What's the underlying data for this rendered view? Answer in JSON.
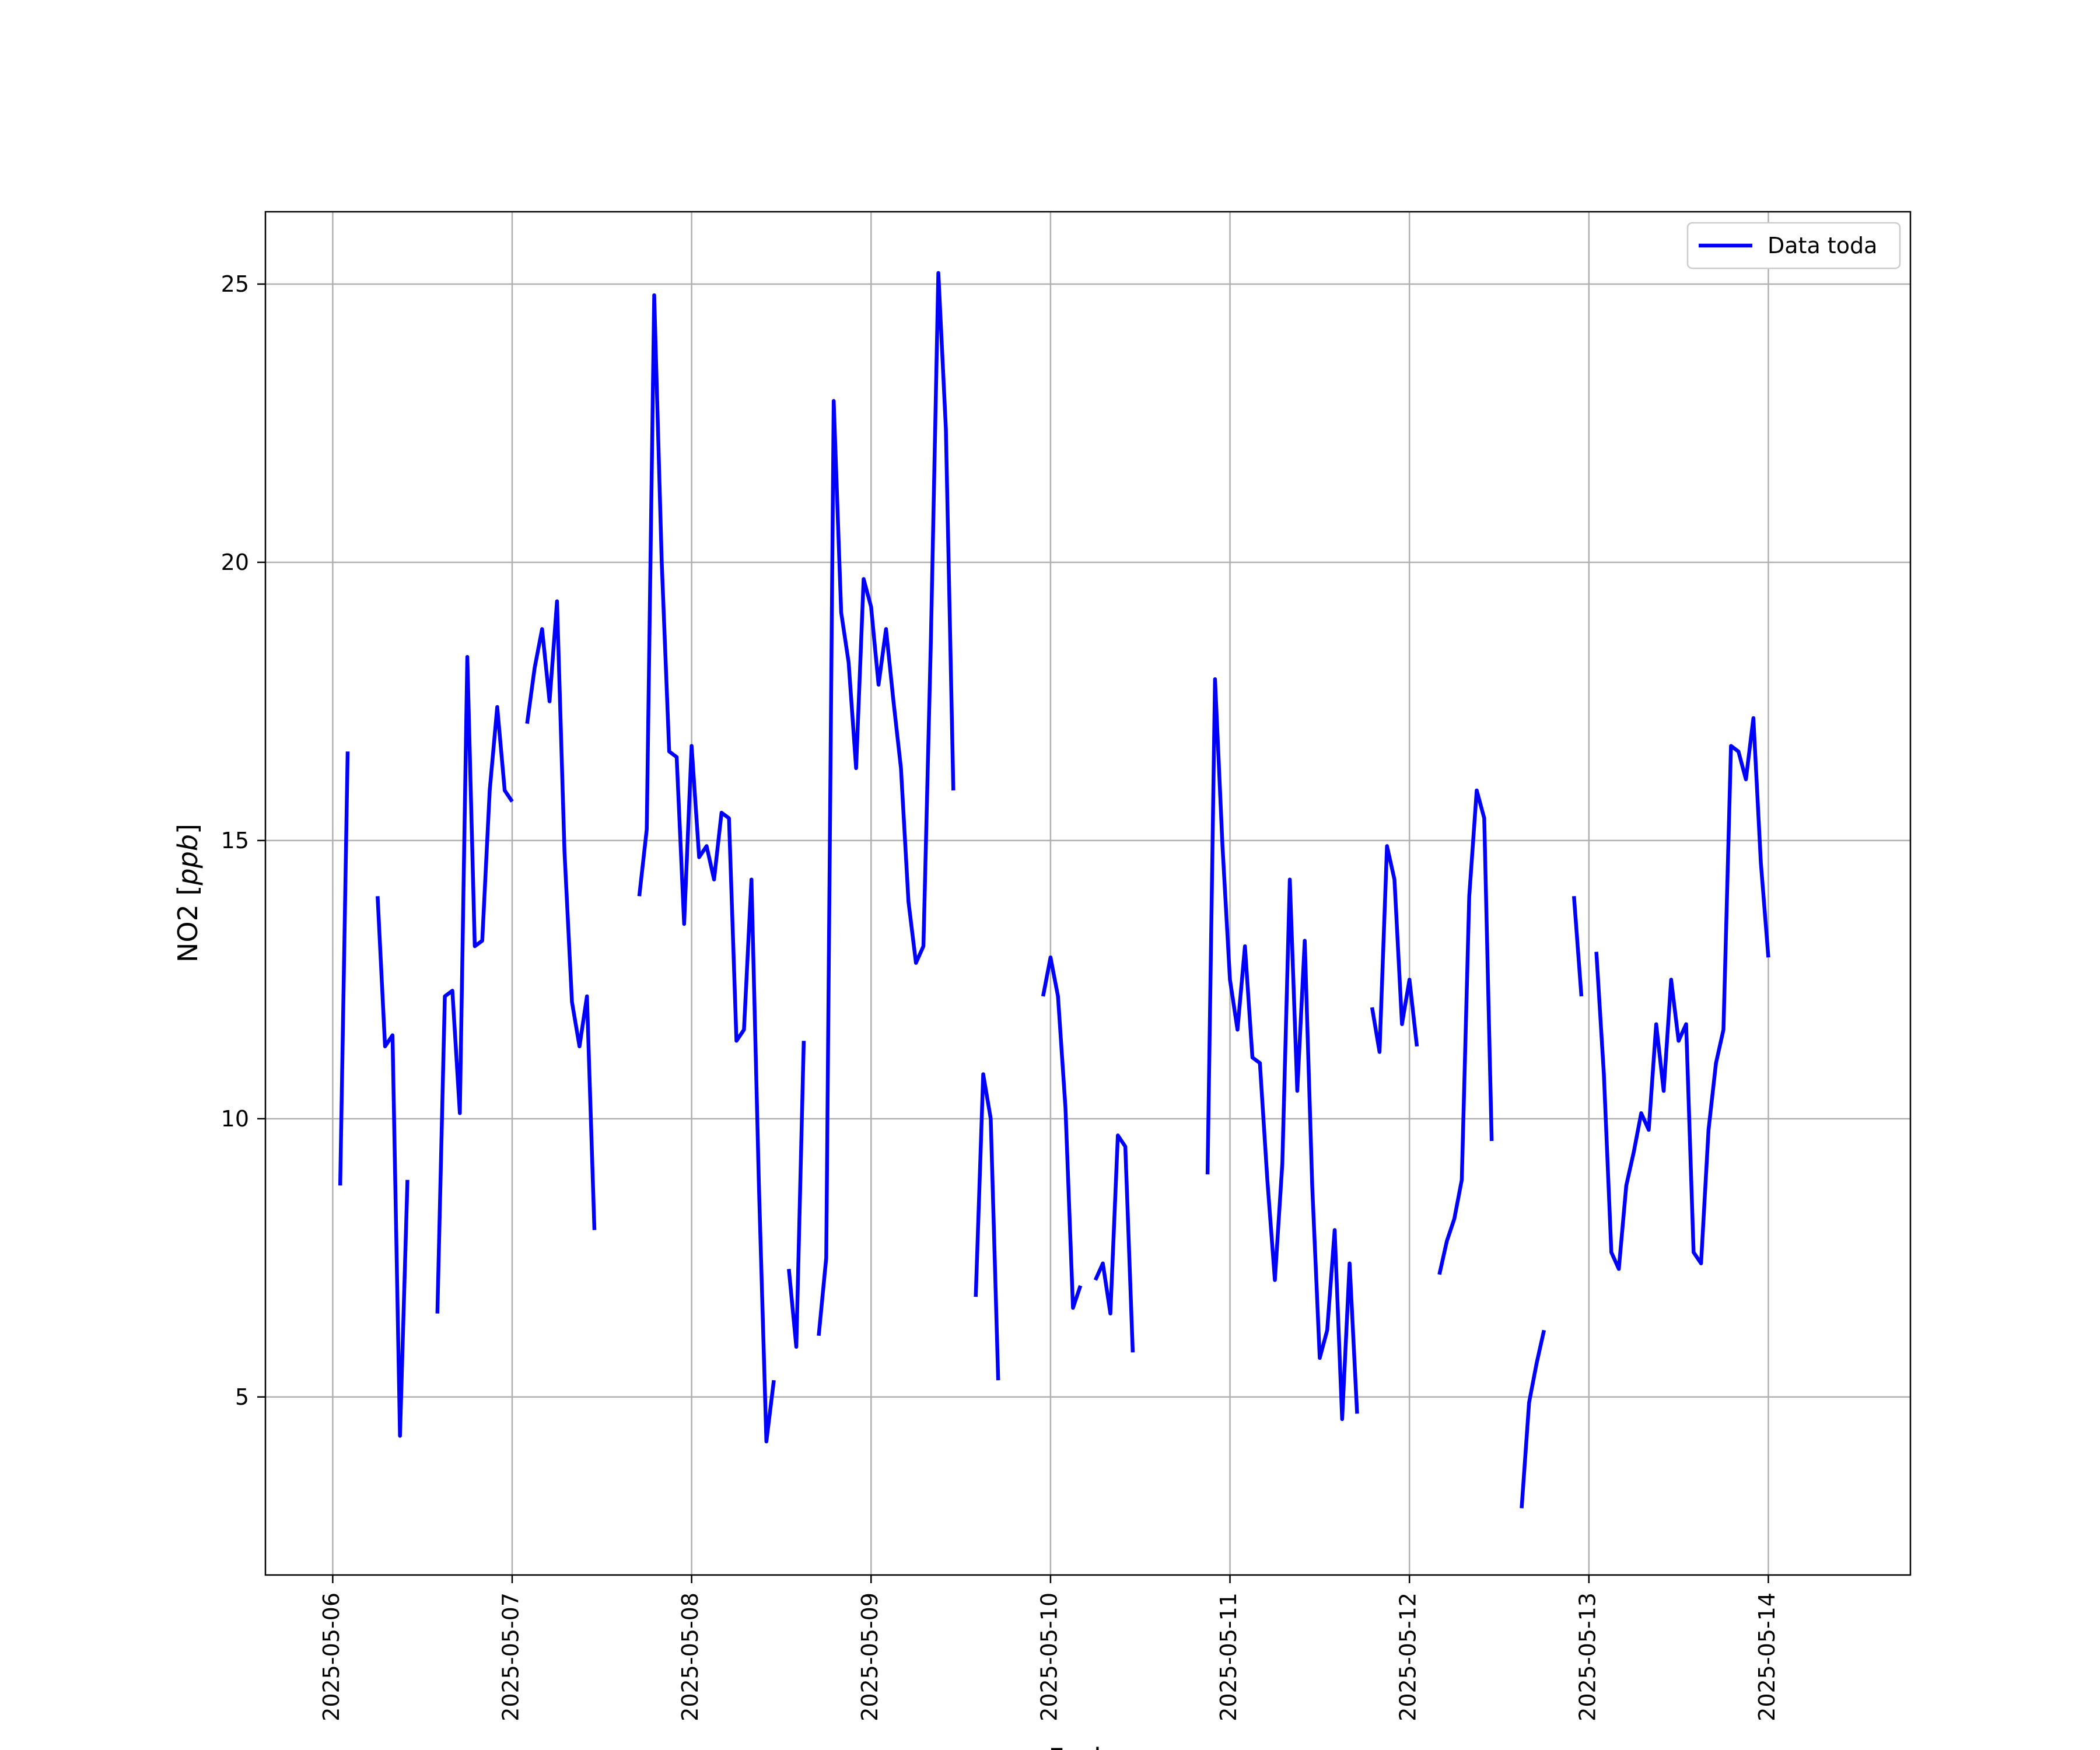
{
  "chart_data": {
    "type": "line",
    "xlabel": "Fecha",
    "ylabel": "NO2 [ppb]",
    "xlim": [
      "2025-05-05 15:00",
      "2025-05-14 19:00"
    ],
    "ylim": [
      1.8,
      26.3
    ],
    "yticks": [
      5,
      10,
      15,
      20,
      25
    ],
    "xticks": [
      "2025-05-06",
      "2025-05-07",
      "2025-05-08",
      "2025-05-09",
      "2025-05-10",
      "2025-05-11",
      "2025-05-12",
      "2025-05-13",
      "2025-05-14"
    ],
    "grid": true,
    "legend": {
      "position": "top-right",
      "entries": [
        "Data toda"
      ]
    },
    "colors": {
      "series": "#0000ff",
      "grid": "#b0b0b0"
    },
    "series": [
      {
        "name": "Data toda",
        "segments": [
          [
            [
              "2025-05-06 01:00",
              8.8
            ],
            [
              "2025-05-06 02:00",
              16.6
            ]
          ],
          [
            [
              "2025-05-06 06:00",
              14.0
            ],
            [
              "2025-05-06 07:00",
              11.3
            ],
            [
              "2025-05-06 08:00",
              11.5
            ],
            [
              "2025-05-06 09:00",
              4.3
            ],
            [
              "2025-05-06 10:00",
              8.9
            ]
          ],
          [
            [
              "2025-05-06 14:00",
              6.5
            ],
            [
              "2025-05-06 15:00",
              12.2
            ],
            [
              "2025-05-06 16:00",
              12.3
            ],
            [
              "2025-05-06 17:00",
              10.1
            ],
            [
              "2025-05-06 18:00",
              18.3
            ],
            [
              "2025-05-06 19:00",
              13.1
            ],
            [
              "2025-05-06 20:00",
              13.2
            ],
            [
              "2025-05-06 21:00",
              15.9
            ],
            [
              "2025-05-06 22:00",
              17.4
            ],
            [
              "2025-05-06 23:00",
              15.9
            ],
            [
              "2025-05-07 00:00",
              15.7
            ]
          ],
          [
            [
              "2025-05-07 02:00",
              17.1
            ],
            [
              "2025-05-07 03:00",
              18.1
            ],
            [
              "2025-05-07 04:00",
              18.8
            ],
            [
              "2025-05-07 05:00",
              17.5
            ],
            [
              "2025-05-07 06:00",
              19.3
            ],
            [
              "2025-05-07 07:00",
              14.8
            ],
            [
              "2025-05-07 08:00",
              12.1
            ],
            [
              "2025-05-07 09:00",
              11.3
            ],
            [
              "2025-05-07 10:00",
              12.2
            ],
            [
              "2025-05-07 11:00",
              8.0
            ]
          ],
          [
            [
              "2025-05-07 17:00",
              14.0
            ],
            [
              "2025-05-07 18:00",
              15.2
            ],
            [
              "2025-05-07 19:00",
              24.8
            ],
            [
              "2025-05-07 20:00",
              20.0
            ],
            [
              "2025-05-07 21:00",
              16.6
            ],
            [
              "2025-05-07 22:00",
              16.5
            ],
            [
              "2025-05-07 23:00",
              13.5
            ],
            [
              "2025-05-08 00:00",
              16.7
            ],
            [
              "2025-05-08 01:00",
              14.7
            ],
            [
              "2025-05-08 02:00",
              14.9
            ],
            [
              "2025-05-08 03:00",
              14.3
            ],
            [
              "2025-05-08 04:00",
              15.5
            ],
            [
              "2025-05-08 05:00",
              15.4
            ],
            [
              "2025-05-08 06:00",
              11.4
            ],
            [
              "2025-05-08 07:00",
              11.6
            ],
            [
              "2025-05-08 08:00",
              14.3
            ],
            [
              "2025-05-08 09:00",
              8.8
            ],
            [
              "2025-05-08 10:00",
              4.2
            ],
            [
              "2025-05-08 11:00",
              5.3
            ]
          ],
          [
            [
              "2025-05-08 13:00",
              7.3
            ],
            [
              "2025-05-08 14:00",
              5.9
            ],
            [
              "2025-05-08 15:00",
              11.4
            ]
          ],
          [
            [
              "2025-05-08 17:00",
              6.1
            ],
            [
              "2025-05-08 18:00",
              7.5
            ],
            [
              "2025-05-08 19:00",
              22.9
            ],
            [
              "2025-05-08 20:00",
              19.1
            ],
            [
              "2025-05-08 21:00",
              18.2
            ],
            [
              "2025-05-08 22:00",
              16.3
            ],
            [
              "2025-05-08 23:00",
              19.7
            ],
            [
              "2025-05-09 00:00",
              19.2
            ],
            [
              "2025-05-09 01:00",
              17.8
            ],
            [
              "2025-05-09 02:00",
              18.8
            ],
            [
              "2025-05-09 03:00",
              17.5
            ],
            [
              "2025-05-09 04:00",
              16.3
            ],
            [
              "2025-05-09 05:00",
              13.9
            ],
            [
              "2025-05-09 06:00",
              12.8
            ],
            [
              "2025-05-09 07:00",
              13.1
            ],
            [
              "2025-05-09 08:00",
              18.6
            ],
            [
              "2025-05-09 09:00",
              25.2
            ],
            [
              "2025-05-09 10:00",
              22.4
            ],
            [
              "2025-05-09 11:00",
              15.9
            ]
          ],
          [
            [
              "2025-05-09 14:00",
              6.8
            ],
            [
              "2025-05-09 15:00",
              10.8
            ],
            [
              "2025-05-09 16:00",
              10.0
            ],
            [
              "2025-05-09 17:00",
              5.3
            ]
          ],
          [
            [
              "2025-05-09 23:00",
              12.2
            ],
            [
              "2025-05-10 00:00",
              12.9
            ],
            [
              "2025-05-10 01:00",
              12.2
            ],
            [
              "2025-05-10 02:00",
              10.2
            ],
            [
              "2025-05-10 03:00",
              6.6
            ],
            [
              "2025-05-10 04:00",
              7.0
            ]
          ],
          [
            [
              "2025-05-10 06:00",
              7.1
            ],
            [
              "2025-05-10 07:00",
              7.4
            ],
            [
              "2025-05-10 08:00",
              6.5
            ],
            [
              "2025-05-10 09:00",
              9.7
            ],
            [
              "2025-05-10 10:00",
              9.5
            ],
            [
              "2025-05-10 11:00",
              5.8
            ]
          ],
          [
            [
              "2025-05-10 21:00",
              9.0
            ],
            [
              "2025-05-10 22:00",
              17.9
            ],
            [
              "2025-05-10 23:00",
              14.9
            ],
            [
              "2025-05-11 00:00",
              12.5
            ],
            [
              "2025-05-11 01:00",
              11.6
            ],
            [
              "2025-05-11 02:00",
              13.1
            ],
            [
              "2025-05-11 03:00",
              11.1
            ],
            [
              "2025-05-11 04:00",
              11.0
            ],
            [
              "2025-05-11 05:00",
              8.9
            ],
            [
              "2025-05-11 06:00",
              7.1
            ],
            [
              "2025-05-11 07:00",
              9.2
            ],
            [
              "2025-05-11 08:00",
              14.3
            ],
            [
              "2025-05-11 09:00",
              10.5
            ],
            [
              "2025-05-11 10:00",
              13.2
            ],
            [
              "2025-05-11 11:00",
              8.8
            ],
            [
              "2025-05-11 12:00",
              5.7
            ],
            [
              "2025-05-11 13:00",
              6.2
            ],
            [
              "2025-05-11 14:00",
              8.0
            ],
            [
              "2025-05-11 15:00",
              4.6
            ],
            [
              "2025-05-11 16:00",
              7.4
            ],
            [
              "2025-05-11 17:00",
              4.7
            ]
          ],
          [
            [
              "2025-05-11 19:00",
              12.0
            ],
            [
              "2025-05-11 20:00",
              11.2
            ],
            [
              "2025-05-11 21:00",
              14.9
            ],
            [
              "2025-05-11 22:00",
              14.3
            ],
            [
              "2025-05-11 23:00",
              11.7
            ],
            [
              "2025-05-12 00:00",
              12.5
            ],
            [
              "2025-05-12 01:00",
              11.3
            ]
          ],
          [
            [
              "2025-05-12 04:00",
              7.2
            ],
            [
              "2025-05-12 05:00",
              7.8
            ],
            [
              "2025-05-12 06:00",
              8.2
            ],
            [
              "2025-05-12 07:00",
              8.9
            ],
            [
              "2025-05-12 08:00",
              14.0
            ],
            [
              "2025-05-12 09:00",
              15.9
            ],
            [
              "2025-05-12 10:00",
              15.4
            ],
            [
              "2025-05-12 11:00",
              9.6
            ]
          ],
          [
            [
              "2025-05-12 15:00",
              3.0
            ],
            [
              "2025-05-12 16:00",
              4.9
            ],
            [
              "2025-05-12 17:00",
              5.6
            ],
            [
              "2025-05-12 18:00",
              6.2
            ]
          ],
          [
            [
              "2025-05-12 22:00",
              14.0
            ],
            [
              "2025-05-12 23:00",
              12.2
            ]
          ],
          [
            [
              "2025-05-13 01:00",
              13.0
            ],
            [
              "2025-05-13 02:00",
              10.8
            ],
            [
              "2025-05-13 03:00",
              7.6
            ],
            [
              "2025-05-13 04:00",
              7.3
            ],
            [
              "2025-05-13 05:00",
              8.8
            ],
            [
              "2025-05-13 06:00",
              9.4
            ],
            [
              "2025-05-13 07:00",
              10.1
            ],
            [
              "2025-05-13 08:00",
              9.8
            ],
            [
              "2025-05-13 09:00",
              11.7
            ],
            [
              "2025-05-13 10:00",
              10.5
            ],
            [
              "2025-05-13 11:00",
              12.5
            ],
            [
              "2025-05-13 12:00",
              11.4
            ],
            [
              "2025-05-13 13:00",
              11.7
            ],
            [
              "2025-05-13 14:00",
              7.6
            ],
            [
              "2025-05-13 15:00",
              7.4
            ],
            [
              "2025-05-13 16:00",
              9.8
            ],
            [
              "2025-05-13 17:00",
              11.0
            ],
            [
              "2025-05-13 18:00",
              11.6
            ],
            [
              "2025-05-13 19:00",
              16.7
            ],
            [
              "2025-05-13 20:00",
              16.6
            ],
            [
              "2025-05-13 21:00",
              16.1
            ],
            [
              "2025-05-13 22:00",
              17.2
            ],
            [
              "2025-05-13 23:00",
              14.6
            ],
            [
              "2025-05-14 00:00",
              12.9
            ]
          ]
        ]
      }
    ]
  }
}
